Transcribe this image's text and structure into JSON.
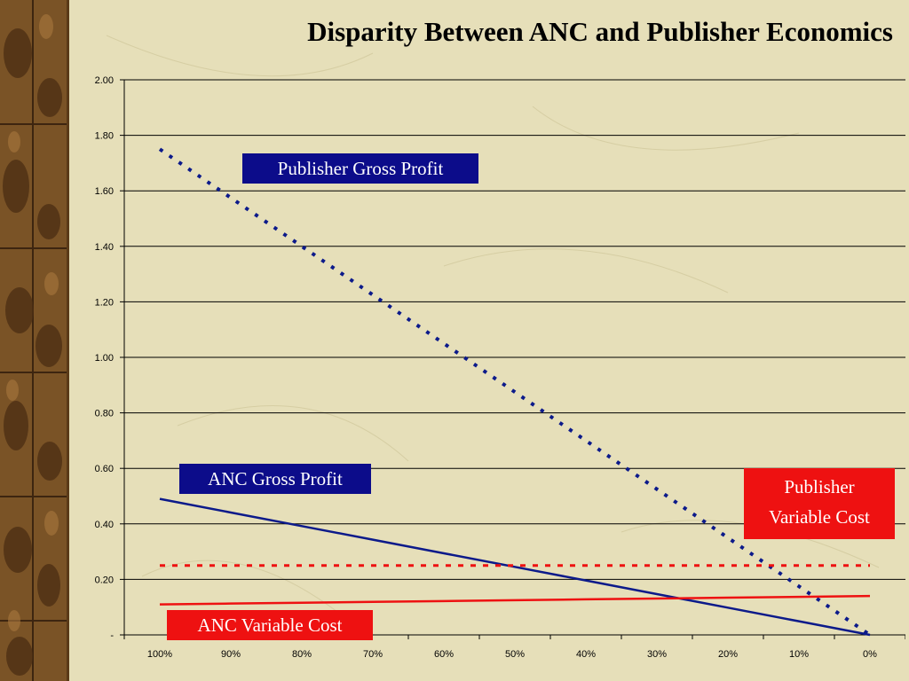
{
  "title": "Disparity Between ANC and Publisher Economics",
  "callouts": {
    "publisher_gross_profit": "Publisher Gross Profit",
    "anc_gross_profit": "ANC Gross Profit",
    "publisher_variable_cost_line1": "Publisher",
    "publisher_variable_cost_line2": "Variable Cost",
    "anc_variable_cost": "ANC Variable Cost"
  },
  "chart_data": {
    "type": "line",
    "title": "Disparity Between ANC and Publisher Economics",
    "categories": [
      "100%",
      "90%",
      "80%",
      "70%",
      "60%",
      "50%",
      "40%",
      "30%",
      "20%",
      "10%",
      "0%"
    ],
    "y_ticks": [
      "-",
      "0.20",
      "0.40",
      "0.60",
      "0.80",
      "1.00",
      "1.20",
      "1.40",
      "1.60",
      "1.80",
      "2.00"
    ],
    "ylim": [
      0,
      2.0
    ],
    "grid": true,
    "series": [
      {
        "name": "Publisher Gross Profit",
        "color": "#0c1a8a",
        "style": "dotted",
        "values": [
          1.75,
          1.575,
          1.4,
          1.225,
          1.05,
          0.875,
          0.7,
          0.525,
          0.35,
          0.175,
          0.0
        ]
      },
      {
        "name": "ANC Gross Profit",
        "color": "#0c1a8a",
        "style": "solid",
        "values": [
          0.49,
          0.441,
          0.392,
          0.343,
          0.294,
          0.245,
          0.196,
          0.147,
          0.098,
          0.049,
          0.0
        ]
      },
      {
        "name": "Publisher Variable Cost",
        "color": "#ee1111",
        "style": "dashed",
        "values": [
          0.25,
          0.25,
          0.25,
          0.25,
          0.25,
          0.25,
          0.25,
          0.25,
          0.25,
          0.25,
          0.25
        ]
      },
      {
        "name": "ANC Variable Cost",
        "color": "#ee1111",
        "style": "solid",
        "values": [
          0.11,
          0.113,
          0.116,
          0.119,
          0.122,
          0.125,
          0.128,
          0.131,
          0.134,
          0.137,
          0.14
        ]
      }
    ]
  }
}
